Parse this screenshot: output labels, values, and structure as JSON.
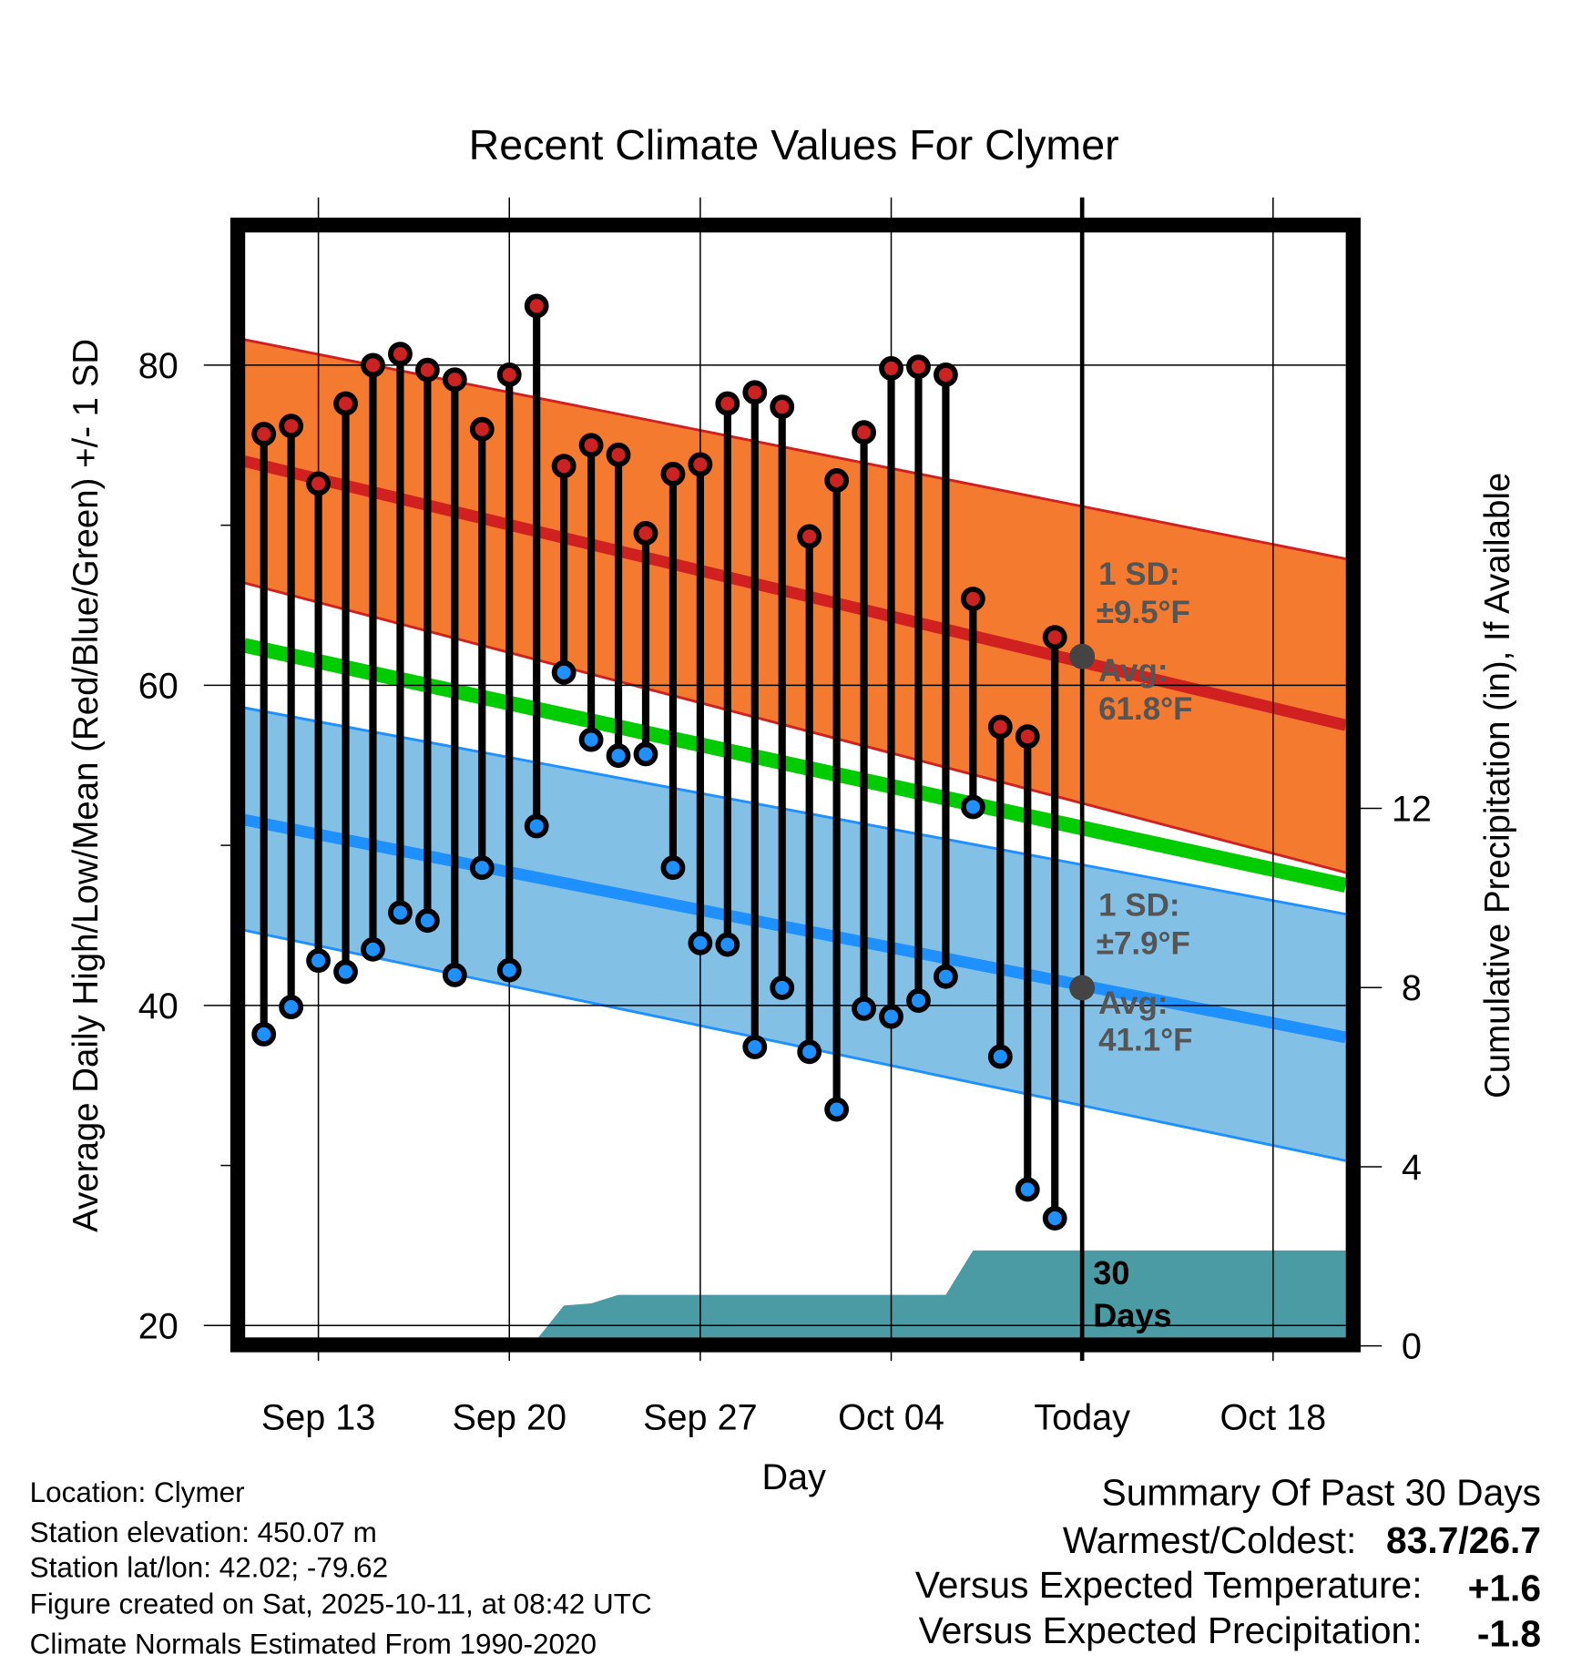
{
  "chart_data": {
    "type": "line",
    "title": "Recent Climate Values For Clymer",
    "xlabel": "Day",
    "ylabel": "Average Daily High/Low/Mean (Red/Blue/Green) +/- 1 SD",
    "y2label": "Cumulative Precipitation (in), If Available",
    "ylim": [
      19.3,
      88.7
    ],
    "y2lim": [
      0,
      16.4
    ],
    "x_unit": "days since Sep 11",
    "xlim": [
      -0.72,
      39.66
    ],
    "x_ticks": [
      {
        "day": 2,
        "label": "Sep 13"
      },
      {
        "day": 9,
        "label": "Sep 20"
      },
      {
        "day": 16,
        "label": "Sep 27"
      },
      {
        "day": 23,
        "label": "Oct 04"
      },
      {
        "day": 30,
        "label": "Today"
      },
      {
        "day": 37,
        "label": "Oct 18"
      }
    ],
    "y_ticks": [
      {
        "v": 80,
        "label": "80"
      },
      {
        "v": 60,
        "label": "60"
      },
      {
        "v": 40,
        "label": "40"
      },
      {
        "v": 20,
        "label": "20"
      }
    ],
    "y_minor_ticks": [
      70,
      50,
      30
    ],
    "y2_ticks": [
      {
        "v": 0,
        "label": "0"
      },
      {
        "v": 4,
        "label": "4"
      },
      {
        "v": 8,
        "label": "8"
      },
      {
        "v": 12,
        "label": "12"
      }
    ],
    "today_day": 30,
    "highs": [
      75.7,
      76.2,
      72.6,
      77.6,
      80.0,
      80.7,
      79.7,
      79.1,
      76.0,
      79.4,
      83.7,
      73.7,
      75.0,
      74.4,
      69.5,
      73.2,
      73.8,
      77.6,
      78.3,
      77.4,
      69.3,
      72.8,
      75.8,
      79.8,
      79.9,
      79.4,
      65.4,
      57.4,
      56.8,
      63.0
    ],
    "lows": [
      38.2,
      39.9,
      42.8,
      42.1,
      43.5,
      45.8,
      45.3,
      41.9,
      48.6,
      42.2,
      51.2,
      60.8,
      56.6,
      55.6,
      55.7,
      48.6,
      43.9,
      43.8,
      37.4,
      41.1,
      37.1,
      33.5,
      39.8,
      39.3,
      40.3,
      41.8,
      52.4,
      36.8,
      28.5,
      26.7
    ],
    "precip_cumulative": [
      {
        "day": 10,
        "v": 0
      },
      {
        "day": 11,
        "v": 0.9
      },
      {
        "day": 12,
        "v": 0.95
      },
      {
        "day": 13,
        "v": 1.14
      },
      {
        "day": 25,
        "v": 1.14
      },
      {
        "day": 26,
        "v": 2.13
      },
      {
        "day": 39.66,
        "v": 2.13
      }
    ],
    "normals": {
      "high_upper": [
        81.6,
        67.9
      ],
      "high_mean": [
        74.0,
        57.5
      ],
      "high_lower": [
        66.4,
        48.3
      ],
      "mean": [
        62.5,
        47.5
      ],
      "low_upper": [
        58.6,
        45.7
      ],
      "low_mean": [
        51.6,
        38.0
      ],
      "low_lower": [
        44.7,
        30.3
      ]
    },
    "annotations": {
      "high_sd_label": "1 SD:",
      "high_sd_value": "±9.5°F",
      "high_avg_label": "Avg:",
      "high_avg_value": "61.8°F",
      "high_avg": 61.8,
      "low_sd_label": "1 SD:",
      "low_sd_value": "±7.9°F",
      "low_avg_label": "Avg:",
      "low_avg_value": "41.1°F",
      "low_avg": 41.1,
      "precip_label_1": "30",
      "precip_label_2": "Days"
    },
    "colors": {
      "high_band": "#f47a2f",
      "high_line": "#d02020",
      "mean_line": "#00cc00",
      "low_band": "#82c0e6",
      "low_line": "#1e90ff",
      "precip": "#4a9ba3",
      "high_dot": "#cc2222",
      "low_dot": "#1e90ff"
    }
  },
  "footer": {
    "location": "Location: Clymer",
    "elevation": "Station elevation: 450.07 m",
    "latlon": "Station lat/lon: 42.02; -79.62",
    "created": "Figure created on Sat, 2025-10-11, at 08:42 UTC",
    "normals": "Climate Normals Estimated From 1990-2020"
  },
  "summary": {
    "title": "Summary Of Past 30 Days",
    "warm_cold_label": "Warmest/Coldest:",
    "warm_cold_value": "83.7/26.7",
    "temp_label": "Versus Expected Temperature:",
    "temp_value": "+1.6",
    "precip_label": "Versus Expected Precipitation:",
    "precip_value": "-1.8",
    "temp_color": "#cc2222",
    "precip_color": "#a0522d"
  }
}
